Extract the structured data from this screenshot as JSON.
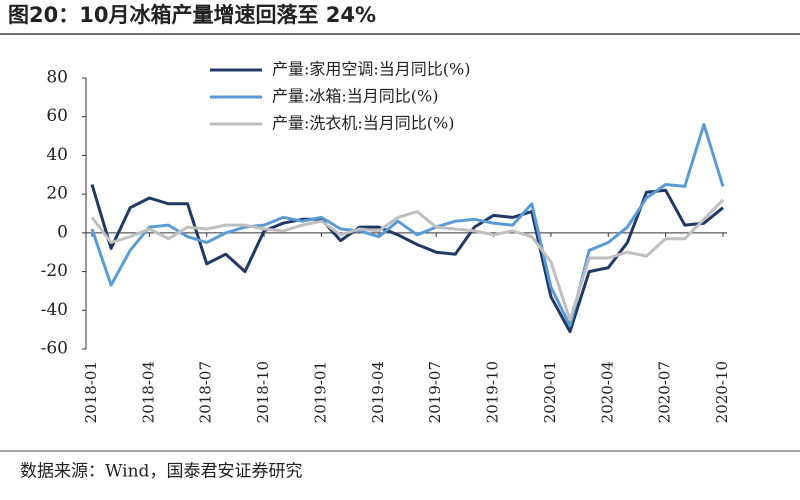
{
  "chart_data": {
    "type": "line",
    "title": "图20：10月冰箱产量增速回落至 24%",
    "source": "数据来源：Wind，国泰君安证券研究",
    "categories": [
      "2018-01",
      null,
      null,
      "2018-04",
      null,
      null,
      "2018-07",
      null,
      null,
      "2018-10",
      null,
      null,
      "2019-01",
      null,
      null,
      "2019-04",
      null,
      null,
      "2019-07",
      null,
      null,
      "2019-10",
      null,
      null,
      "2020-01",
      null,
      null,
      "2020-04",
      null,
      null,
      "2020-07",
      null,
      null,
      "2020-10"
    ],
    "series": [
      {
        "name": "产量:家用空调:当月同比(%)",
        "color": "#1f3864",
        "values": [
          25,
          -8,
          13,
          18,
          15,
          15,
          -16,
          -11,
          -20,
          1,
          5,
          7,
          7,
          -4,
          3,
          3,
          -1,
          -6,
          -10,
          -11,
          3,
          9,
          8,
          11,
          -33,
          -51,
          -20,
          -18,
          -5,
          21,
          22,
          4,
          5,
          13
        ]
      },
      {
        "name": "产量:冰箱:当月同比(%)",
        "color": "#5b9bd5",
        "values": [
          2,
          -27,
          -9,
          3,
          4,
          -2,
          -5,
          0,
          3,
          4,
          8,
          6,
          8,
          2,
          1,
          -2,
          6,
          -1,
          3,
          6,
          7,
          5,
          4,
          15,
          -28,
          -48,
          -9,
          -5,
          3,
          18,
          25,
          24,
          56,
          24
        ]
      },
      {
        "name": "产量:洗衣机:当月同比(%)",
        "color": "#bfbfbf",
        "values": [
          8,
          -5,
          -2,
          2,
          -3,
          3,
          2,
          4,
          4,
          2,
          1,
          4,
          6,
          -1,
          2,
          1,
          8,
          11,
          3,
          2,
          1,
          -1,
          1,
          -2,
          -15,
          -45,
          -13,
          -13,
          -10,
          -12,
          -3,
          -3,
          7,
          17
        ]
      }
    ],
    "ylim": [
      -60,
      80
    ],
    "yticks": [
      -60,
      -40,
      -20,
      0,
      20,
      40,
      60,
      80
    ],
    "grid": false,
    "legend": "top"
  }
}
